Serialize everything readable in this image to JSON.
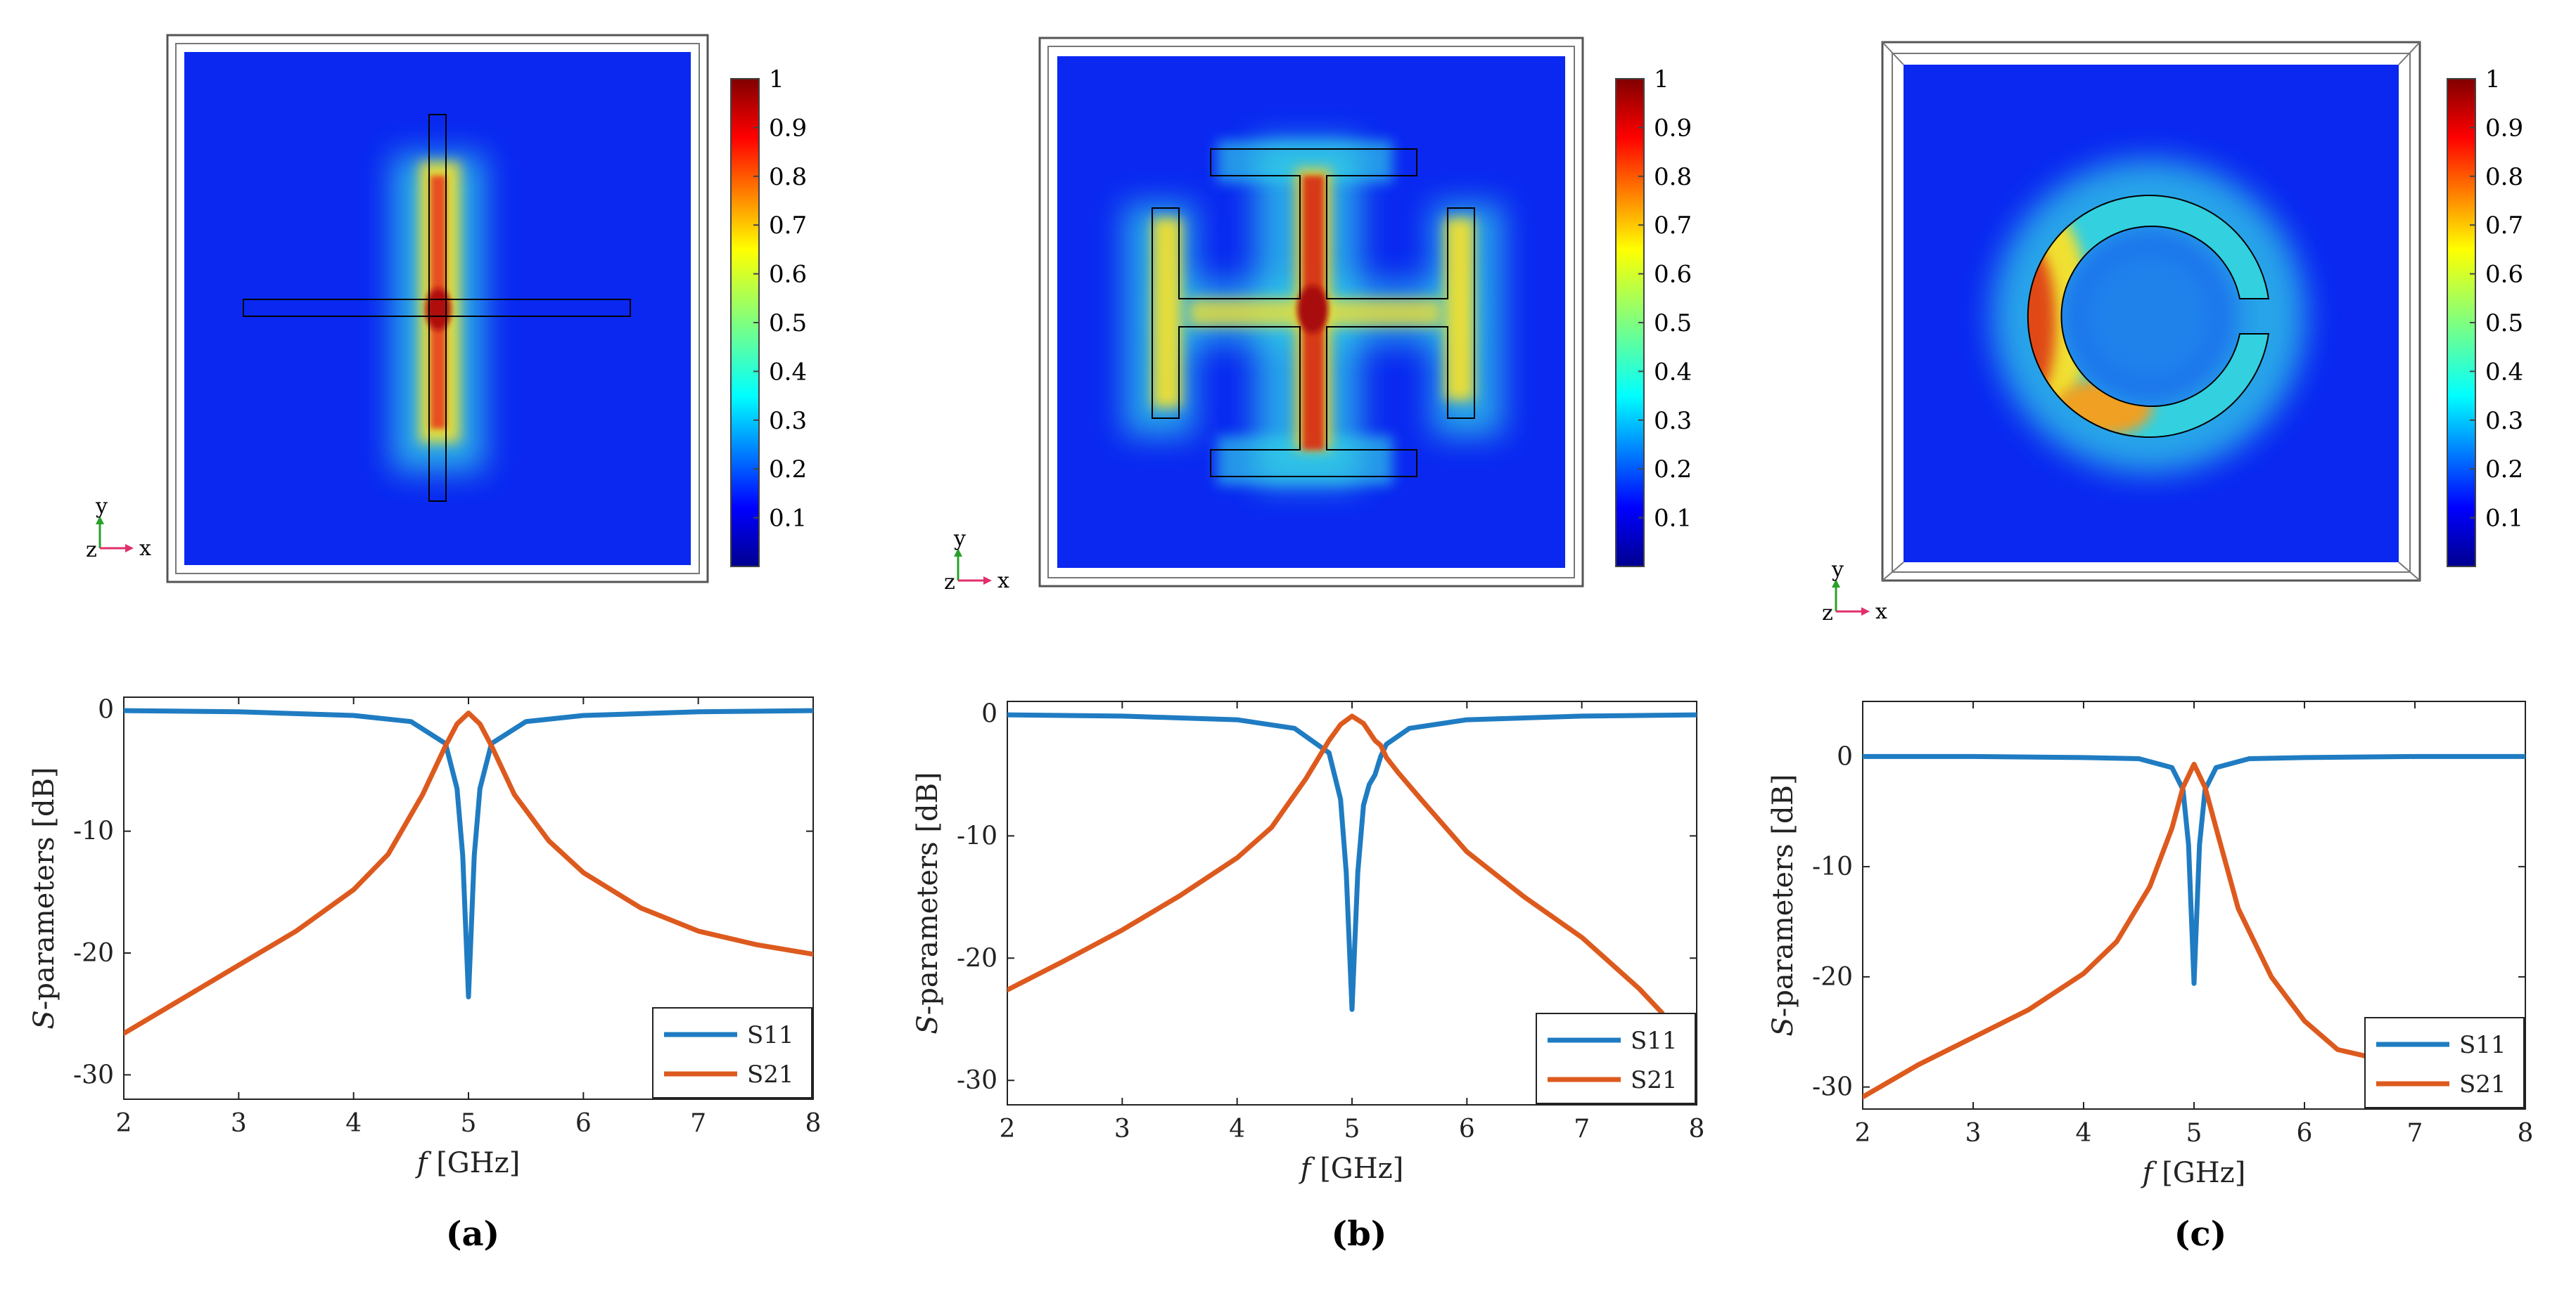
{
  "panel_labels": [
    "(a)",
    "(b)",
    "(c)"
  ],
  "colorbar": {
    "ticks": [
      "0.1",
      "0.2",
      "0.3",
      "0.4",
      "0.5",
      "0.6",
      "0.7",
      "0.8",
      "0.9",
      "1"
    ],
    "range": [
      0,
      1
    ]
  },
  "axis_triad": {
    "x": "x",
    "y": "y",
    "z": "z"
  },
  "colors": {
    "s11": "#1f7cc2",
    "s21": "#dd5a1e",
    "field_background": "#0a28f0"
  },
  "chart_data": [
    {
      "type": "line",
      "panel": "(a)",
      "xlabel_italic": "f",
      "xlabel": " [GHz]",
      "ylabel_italic": "S",
      "ylabel": "-parameters [dB]",
      "xlim": [
        2,
        8
      ],
      "ylim": [
        -32,
        1
      ],
      "xticks": [
        2,
        3,
        4,
        5,
        6,
        7,
        8
      ],
      "yticks": [
        0,
        -10,
        -20,
        -30
      ],
      "legend": [
        "S11",
        "S21"
      ],
      "series": [
        {
          "name": "S11",
          "x": [
            2,
            3,
            4,
            4.5,
            4.8,
            4.9,
            4.95,
            5.0,
            5.05,
            5.1,
            5.2,
            5.5,
            6,
            7,
            8
          ],
          "values": [
            -0.1,
            -0.2,
            -0.5,
            -1.0,
            -2.8,
            -6.5,
            -12.0,
            -23.6,
            -12.0,
            -6.5,
            -2.8,
            -1.0,
            -0.5,
            -0.2,
            -0.1
          ]
        },
        {
          "name": "S21",
          "x": [
            2,
            2.5,
            3,
            3.5,
            4,
            4.3,
            4.6,
            4.8,
            4.9,
            5.0,
            5.1,
            5.2,
            5.4,
            5.7,
            6,
            6.5,
            7,
            7.5,
            8
          ],
          "values": [
            -26.6,
            -23.8,
            -21.0,
            -18.2,
            -14.8,
            -11.9,
            -7.0,
            -3.0,
            -1.2,
            -0.3,
            -1.2,
            -3.0,
            -7.0,
            -10.8,
            -13.4,
            -16.3,
            -18.2,
            -19.3,
            -20.1
          ]
        }
      ]
    },
    {
      "type": "line",
      "panel": "(b)",
      "xlabel_italic": "f",
      "xlabel": " [GHz]",
      "ylabel_italic": "S",
      "ylabel": "-parameters [dB]",
      "xlim": [
        2,
        8
      ],
      "ylim": [
        -32,
        1
      ],
      "xticks": [
        2,
        3,
        4,
        5,
        6,
        7,
        8
      ],
      "yticks": [
        0,
        -10,
        -20,
        -30
      ],
      "legend": [
        "S11",
        "S21"
      ],
      "series": [
        {
          "name": "S11",
          "x": [
            2,
            3,
            4,
            4.5,
            4.8,
            4.9,
            4.95,
            5.0,
            5.05,
            5.1,
            5.15,
            5.2,
            5.25,
            5.3,
            5.5,
            6,
            7,
            8
          ],
          "values": [
            -0.1,
            -0.2,
            -0.5,
            -1.2,
            -3.2,
            -7.0,
            -13.0,
            -24.2,
            -13.0,
            -7.5,
            -5.8,
            -5.0,
            -3.5,
            -2.5,
            -1.2,
            -0.5,
            -0.2,
            -0.1
          ]
        },
        {
          "name": "S21",
          "x": [
            2,
            2.5,
            3,
            3.5,
            4,
            4.3,
            4.6,
            4.8,
            4.9,
            5.0,
            5.1,
            5.2,
            5.25,
            5.3,
            5.4,
            5.6,
            6,
            6.5,
            7,
            7.5,
            7.7
          ],
          "values": [
            -22.6,
            -20.2,
            -17.7,
            -14.9,
            -11.8,
            -9.3,
            -5.3,
            -2.2,
            -0.9,
            -0.2,
            -0.8,
            -2.2,
            -2.6,
            -3.6,
            -4.8,
            -7.0,
            -11.3,
            -15.0,
            -18.3,
            -22.5,
            -24.5
          ]
        }
      ]
    },
    {
      "type": "line",
      "panel": "(c)",
      "xlabel_italic": "f",
      "xlabel": " [GHz]",
      "ylabel_italic": "S",
      "ylabel": "-parameters [dB]",
      "xlim": [
        2,
        8
      ],
      "ylim": [
        -32,
        5
      ],
      "xticks": [
        2,
        3,
        4,
        5,
        6,
        7,
        8
      ],
      "yticks": [
        0,
        -10,
        -20,
        -30
      ],
      "legend": [
        "S11",
        "S21"
      ],
      "series": [
        {
          "name": "S11",
          "x": [
            2,
            3,
            4,
            4.5,
            4.8,
            4.9,
            4.95,
            5.0,
            5.05,
            5.1,
            5.2,
            5.5,
            6,
            7,
            8
          ],
          "values": [
            0,
            0,
            -0.1,
            -0.2,
            -1.0,
            -3.0,
            -8.0,
            -20.6,
            -8.0,
            -3.0,
            -1.0,
            -0.2,
            -0.1,
            0,
            0
          ]
        },
        {
          "name": "S21",
          "x": [
            2,
            2.5,
            3,
            3.5,
            4,
            4.3,
            4.6,
            4.8,
            4.9,
            5.0,
            5.1,
            5.2,
            5.4,
            5.7,
            6,
            6.3,
            6.6
          ],
          "values": [
            -30.9,
            -28.0,
            -25.5,
            -23.0,
            -19.7,
            -16.8,
            -11.8,
            -6.5,
            -2.8,
            -0.7,
            -2.8,
            -6.5,
            -13.8,
            -20.0,
            -24.0,
            -26.6,
            -27.3
          ]
        }
      ]
    }
  ]
}
